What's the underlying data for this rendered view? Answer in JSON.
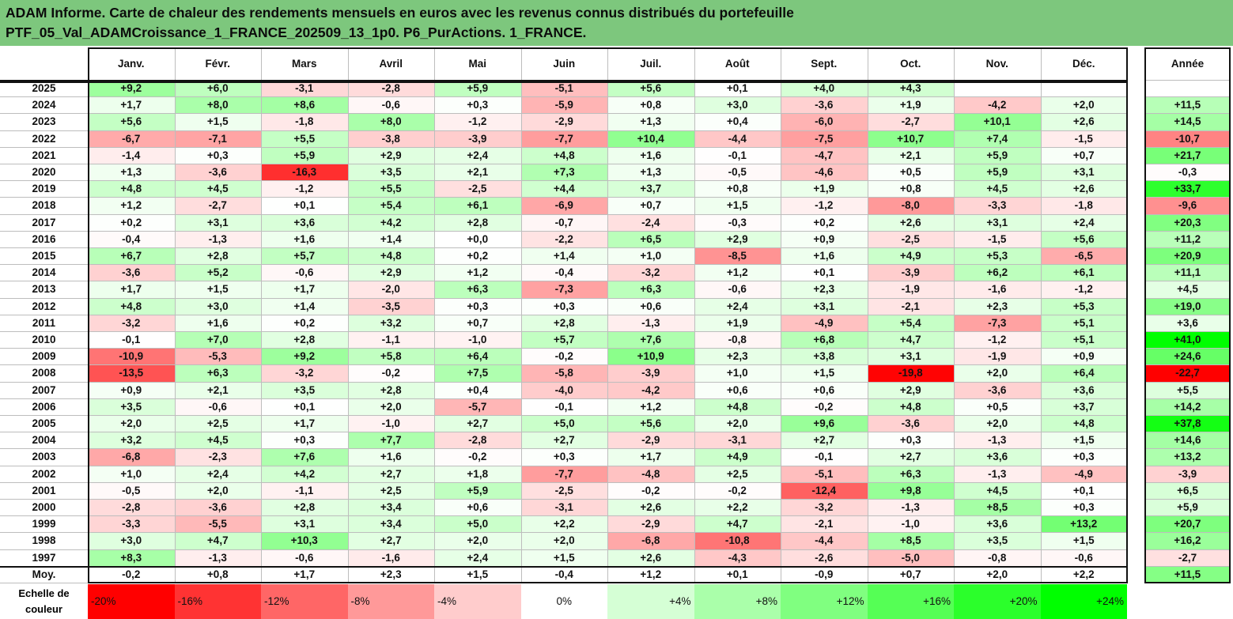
{
  "title_line1": "ADAM Informe. Carte de chaleur des rendements mensuels en euros avec les revenus connus distribués du portefeuille",
  "title_line2": "PTF_05_Val_ADAMCroissance_1_FRANCE_202509_13_1p0. P6_PurActions. 1_FRANCE.",
  "chart_data": {
    "type": "heatmap",
    "title": "ADAM Informe. Carte de chaleur des rendements mensuels en euros avec les revenus connus distribués du portefeuille PTF_05_Val_ADAMCroissance_1_FRANCE_202509_13_1p0. P6_PurActions. 1_FRANCE.",
    "months": [
      "Janv.",
      "Févr.",
      "Mars",
      "Avril",
      "Mai",
      "Juin",
      "Juil.",
      "Août",
      "Sept.",
      "Oct.",
      "Nov.",
      "Déc."
    ],
    "year_header": "Année",
    "rows": [
      {
        "year": "2025",
        "values": [
          9.2,
          6.0,
          -3.1,
          -2.8,
          5.9,
          -5.1,
          5.6,
          0.1,
          4.0,
          4.3,
          null,
          null
        ],
        "annual": null
      },
      {
        "year": "2024",
        "values": [
          1.7,
          8.0,
          8.6,
          -0.6,
          0.3,
          -5.9,
          0.8,
          3.0,
          -3.6,
          1.9,
          -4.2,
          2.0
        ],
        "annual": 11.5
      },
      {
        "year": "2023",
        "values": [
          5.6,
          1.5,
          -1.8,
          8.0,
          -1.2,
          -2.9,
          1.3,
          0.4,
          -6.0,
          -2.7,
          10.1,
          2.6
        ],
        "annual": 14.5
      },
      {
        "year": "2022",
        "values": [
          -6.7,
          -7.1,
          5.5,
          -3.8,
          -3.9,
          -7.7,
          10.4,
          -4.4,
          -7.5,
          10.7,
          7.4,
          -1.5
        ],
        "annual": -10.7
      },
      {
        "year": "2021",
        "values": [
          -1.4,
          0.3,
          5.9,
          2.9,
          2.4,
          4.8,
          1.6,
          -0.1,
          -4.7,
          2.1,
          5.9,
          0.7
        ],
        "annual": 21.7
      },
      {
        "year": "2020",
        "values": [
          1.3,
          -3.6,
          -16.3,
          3.5,
          2.1,
          7.3,
          1.3,
          -0.5,
          -4.6,
          0.5,
          5.9,
          3.1
        ],
        "annual": -0.3
      },
      {
        "year": "2019",
        "values": [
          4.8,
          4.5,
          -1.2,
          5.5,
          -2.5,
          4.4,
          3.7,
          0.8,
          1.9,
          0.8,
          4.5,
          2.6
        ],
        "annual": 33.7
      },
      {
        "year": "2018",
        "values": [
          1.2,
          -2.7,
          0.1,
          5.4,
          6.1,
          -6.9,
          0.7,
          1.5,
          -1.2,
          -8.0,
          -3.3,
          -1.8
        ],
        "annual": -9.6
      },
      {
        "year": "2017",
        "values": [
          0.2,
          3.1,
          3.6,
          4.2,
          2.8,
          -0.7,
          -2.4,
          -0.3,
          0.2,
          2.6,
          3.1,
          2.4
        ],
        "annual": 20.3
      },
      {
        "year": "2016",
        "values": [
          -0.4,
          -1.3,
          1.6,
          1.4,
          0.0,
          -2.2,
          6.5,
          2.9,
          0.9,
          -2.5,
          -1.5,
          5.6
        ],
        "annual": 11.2
      },
      {
        "year": "2015",
        "values": [
          6.7,
          2.8,
          5.7,
          4.8,
          0.2,
          1.4,
          1.0,
          -8.5,
          1.6,
          4.9,
          5.3,
          -6.5
        ],
        "annual": 20.9
      },
      {
        "year": "2014",
        "values": [
          -3.6,
          5.2,
          -0.6,
          2.9,
          1.2,
          -0.4,
          -3.2,
          1.2,
          0.1,
          -3.9,
          6.2,
          6.1
        ],
        "annual": 11.1
      },
      {
        "year": "2013",
        "values": [
          1.7,
          1.5,
          1.7,
          -2.0,
          6.3,
          -7.3,
          6.3,
          -0.6,
          2.3,
          -1.9,
          -1.6,
          -1.2
        ],
        "annual": 4.5
      },
      {
        "year": "2012",
        "values": [
          4.8,
          3.0,
          1.4,
          -3.5,
          0.3,
          0.3,
          0.6,
          2.4,
          3.1,
          -2.1,
          2.3,
          5.3
        ],
        "annual": 19.0
      },
      {
        "year": "2011",
        "values": [
          -3.2,
          1.6,
          0.2,
          3.2,
          0.7,
          2.8,
          -1.3,
          1.9,
          -4.9,
          5.4,
          -7.3,
          5.1
        ],
        "annual": 3.6
      },
      {
        "year": "2010",
        "values": [
          -0.1,
          7.0,
          2.8,
          -1.1,
          -1.0,
          5.7,
          7.6,
          -0.8,
          6.8,
          4.7,
          -1.2,
          5.1
        ],
        "annual": 41.0
      },
      {
        "year": "2009",
        "values": [
          -10.9,
          -5.3,
          9.2,
          5.8,
          6.4,
          -0.2,
          10.9,
          2.3,
          3.8,
          3.1,
          -1.9,
          0.9
        ],
        "annual": 24.6
      },
      {
        "year": "2008",
        "values": [
          -13.5,
          6.3,
          -3.2,
          -0.2,
          7.5,
          -5.8,
          -3.9,
          1.0,
          1.5,
          -19.8,
          2.0,
          6.4
        ],
        "annual": -22.7
      },
      {
        "year": "2007",
        "values": [
          0.9,
          2.1,
          3.5,
          2.8,
          0.4,
          -4.0,
          -4.2,
          0.6,
          0.6,
          2.9,
          -3.6,
          3.6
        ],
        "annual": 5.5
      },
      {
        "year": "2006",
        "values": [
          3.5,
          -0.6,
          0.1,
          2.0,
          -5.7,
          -0.1,
          1.2,
          4.8,
          -0.2,
          4.8,
          0.5,
          3.7
        ],
        "annual": 14.2
      },
      {
        "year": "2005",
        "values": [
          2.0,
          2.5,
          1.7,
          -1.0,
          2.7,
          5.0,
          5.6,
          2.0,
          9.6,
          -3.6,
          2.0,
          4.8
        ],
        "annual": 37.8
      },
      {
        "year": "2004",
        "values": [
          3.2,
          4.5,
          0.3,
          7.7,
          -2.8,
          2.7,
          -2.9,
          -3.1,
          2.7,
          0.3,
          -1.3,
          1.5
        ],
        "annual": 14.6
      },
      {
        "year": "2003",
        "values": [
          -6.8,
          -2.3,
          7.6,
          1.6,
          -0.2,
          0.3,
          1.7,
          4.9,
          -0.1,
          2.7,
          3.6,
          0.3
        ],
        "annual": 13.2
      },
      {
        "year": "2002",
        "values": [
          1.0,
          2.4,
          4.2,
          2.7,
          1.8,
          -7.7,
          -4.8,
          2.5,
          -5.1,
          6.3,
          -1.3,
          -4.9
        ],
        "annual": -3.9
      },
      {
        "year": "2001",
        "values": [
          -0.5,
          2.0,
          -1.1,
          2.5,
          5.9,
          -2.5,
          -0.2,
          -0.2,
          -12.4,
          9.8,
          4.5,
          0.1
        ],
        "annual": 6.5
      },
      {
        "year": "2000",
        "values": [
          -2.8,
          -3.6,
          2.8,
          3.4,
          0.6,
          -3.1,
          2.6,
          2.2,
          -3.2,
          -1.3,
          8.5,
          0.3
        ],
        "annual": 5.9
      },
      {
        "year": "1999",
        "values": [
          -3.3,
          -5.5,
          3.1,
          3.4,
          5.0,
          2.2,
          -2.9,
          4.7,
          -2.1,
          -1.0,
          3.6,
          13.2
        ],
        "annual": 20.7
      },
      {
        "year": "1998",
        "values": [
          3.0,
          4.7,
          10.3,
          2.7,
          2.0,
          2.0,
          -6.8,
          -10.8,
          -4.4,
          8.5,
          3.5,
          1.5
        ],
        "annual": 16.2
      },
      {
        "year": "1997",
        "values": [
          8.3,
          -1.3,
          -0.6,
          -1.6,
          2.4,
          1.5,
          2.6,
          -4.3,
          -2.6,
          -5.0,
          -0.8,
          -0.6
        ],
        "annual": -2.7
      }
    ],
    "average": {
      "label": "Moy.",
      "values": [
        -0.2,
        0.8,
        1.7,
        2.3,
        1.5,
        -0.4,
        1.2,
        0.1,
        -0.9,
        0.7,
        2.0,
        2.2
      ],
      "annual": 11.5
    },
    "color_scale": {
      "label": "Echelle de couleur",
      "stops": [
        "-20%",
        "-16%",
        "-12%",
        "-8%",
        "-4%",
        "0%",
        "+4%",
        "+8%",
        "+12%",
        "+16%",
        "+20%",
        "+24%"
      ],
      "negative_color": "#ff0000",
      "positive_color": "#00ff00",
      "neutral_color": "#ffffff"
    }
  }
}
